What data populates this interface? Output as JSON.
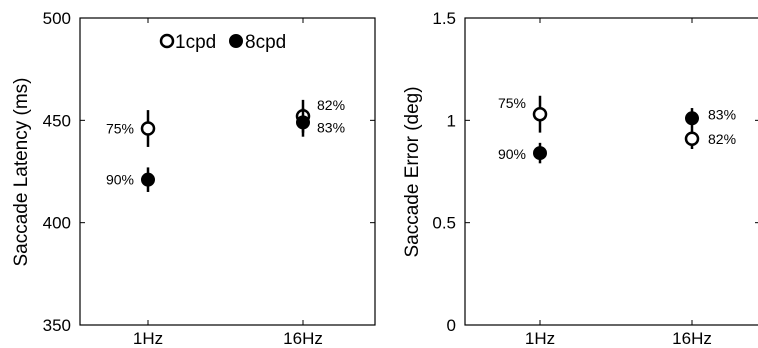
{
  "chart_data": [
    {
      "type": "scatter",
      "ylabel": "Saccade Latency (ms)",
      "categories": [
        "1Hz",
        "16Hz"
      ],
      "ylim": [
        350,
        500
      ],
      "yticks": [
        "350",
        "400",
        "450",
        "500"
      ],
      "yticks_values": [
        350,
        400,
        450,
        500
      ],
      "legend": {
        "position": "top-center",
        "entries": [
          "1cpd",
          "8cpd"
        ]
      },
      "series": [
        {
          "name": "1cpd",
          "marker": "open-circle",
          "color": "#000000",
          "points": [
            {
              "x": "1Hz",
              "y": 446,
              "err": 9,
              "label": "75%"
            },
            {
              "x": "16Hz",
              "y": 452,
              "err": 8,
              "label": "82%"
            }
          ]
        },
        {
          "name": "8cpd",
          "marker": "filled-circle",
          "color": "#000000",
          "points": [
            {
              "x": "1Hz",
              "y": 421,
              "err": 6,
              "label": "90%"
            },
            {
              "x": "16Hz",
              "y": 449,
              "err": 7,
              "label": "83%"
            }
          ]
        }
      ]
    },
    {
      "type": "scatter",
      "ylabel": "Saccade Error (deg)",
      "categories": [
        "1Hz",
        "16Hz"
      ],
      "ylim": [
        0,
        1.5
      ],
      "yticks": [
        "0",
        "0.5",
        "1",
        "1.5"
      ],
      "yticks_values": [
        0,
        0.5,
        1,
        1.5
      ],
      "series": [
        {
          "name": "1cpd",
          "marker": "open-circle",
          "color": "#000000",
          "points": [
            {
              "x": "1Hz",
              "y": 1.03,
              "err": 0.09,
              "label": "75%"
            },
            {
              "x": "16Hz",
              "y": 0.91,
              "err": 0.05,
              "label": "82%"
            }
          ]
        },
        {
          "name": "8cpd",
          "marker": "filled-circle",
          "color": "#000000",
          "points": [
            {
              "x": "1Hz",
              "y": 0.84,
              "err": 0.05,
              "label": "90%"
            },
            {
              "x": "16Hz",
              "y": 1.01,
              "err": 0.05,
              "label": "83%"
            }
          ]
        }
      ]
    }
  ]
}
